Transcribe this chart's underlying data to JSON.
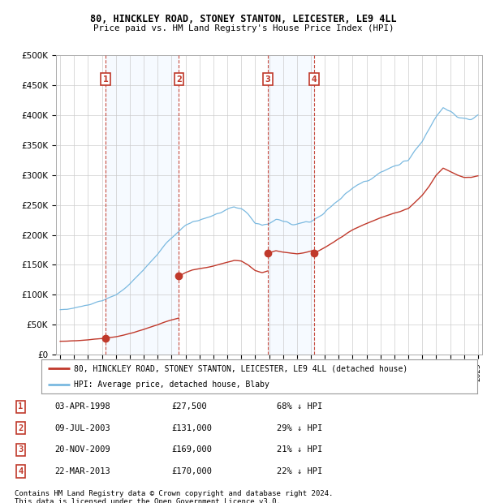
{
  "title1": "80, HINCKLEY ROAD, STONEY STANTON, LEICESTER, LE9 4LL",
  "title2": "Price paid vs. HM Land Registry's House Price Index (HPI)",
  "ylim": [
    0,
    500000
  ],
  "yticks": [
    0,
    50000,
    100000,
    150000,
    200000,
    250000,
    300000,
    350000,
    400000,
    450000,
    500000
  ],
  "ytick_labels": [
    "£0",
    "£50K",
    "£100K",
    "£150K",
    "£200K",
    "£250K",
    "£300K",
    "£350K",
    "£400K",
    "£450K",
    "£500K"
  ],
  "xlim_start": 1994.7,
  "xlim_end": 2025.3,
  "sale_dates": [
    1998.25,
    2003.52,
    2009.9,
    2013.22
  ],
  "sale_prices": [
    27500,
    131000,
    169000,
    170000
  ],
  "sale_labels": [
    "1",
    "2",
    "3",
    "4"
  ],
  "hpi_color": "#7ab9e0",
  "sale_color": "#c0392b",
  "background_color": "#ffffff",
  "grid_color": "#cccccc",
  "shade_color": "#ddeeff",
  "legend_label1": "80, HINCKLEY ROAD, STONEY STANTON, LEICESTER, LE9 4LL (detached house)",
  "legend_label2": "HPI: Average price, detached house, Blaby",
  "table_rows": [
    [
      "1",
      "03-APR-1998",
      "£27,500",
      "68% ↓ HPI"
    ],
    [
      "2",
      "09-JUL-2003",
      "£131,000",
      "29% ↓ HPI"
    ],
    [
      "3",
      "20-NOV-2009",
      "£169,000",
      "21% ↓ HPI"
    ],
    [
      "4",
      "22-MAR-2013",
      "£170,000",
      "22% ↓ HPI"
    ]
  ],
  "footnote1": "Contains HM Land Registry data © Crown copyright and database right 2024.",
  "footnote2": "This data is licensed under the Open Government Licence v3.0.",
  "hpi_data": {
    "1995.0": 75000,
    "1995.5": 76000,
    "1996.0": 78000,
    "1996.5": 80000,
    "1997.0": 83000,
    "1997.5": 87000,
    "1998.0": 90000,
    "1998.5": 95000,
    "1999.0": 100000,
    "1999.5": 108000,
    "2000.0": 118000,
    "2000.5": 130000,
    "2001.0": 142000,
    "2001.5": 155000,
    "2002.0": 168000,
    "2002.5": 183000,
    "2003.0": 195000,
    "2003.5": 205000,
    "2004.0": 215000,
    "2004.5": 222000,
    "2005.0": 225000,
    "2005.5": 228000,
    "2006.0": 232000,
    "2006.5": 237000,
    "2007.0": 242000,
    "2007.5": 247000,
    "2008.0": 245000,
    "2008.5": 235000,
    "2009.0": 220000,
    "2009.5": 215000,
    "2010.0": 220000,
    "2010.5": 225000,
    "2011.0": 222000,
    "2011.5": 220000,
    "2012.0": 218000,
    "2012.5": 220000,
    "2013.0": 224000,
    "2013.5": 230000,
    "2014.0": 238000,
    "2014.5": 248000,
    "2015.0": 258000,
    "2015.5": 268000,
    "2016.0": 278000,
    "2016.5": 285000,
    "2017.0": 292000,
    "2017.5": 298000,
    "2018.0": 305000,
    "2018.5": 310000,
    "2019.0": 315000,
    "2019.5": 320000,
    "2020.0": 325000,
    "2020.5": 340000,
    "2021.0": 355000,
    "2021.5": 375000,
    "2022.0": 400000,
    "2022.5": 415000,
    "2023.0": 408000,
    "2023.5": 400000,
    "2024.0": 395000,
    "2024.5": 395000,
    "2025.0": 398000
  }
}
